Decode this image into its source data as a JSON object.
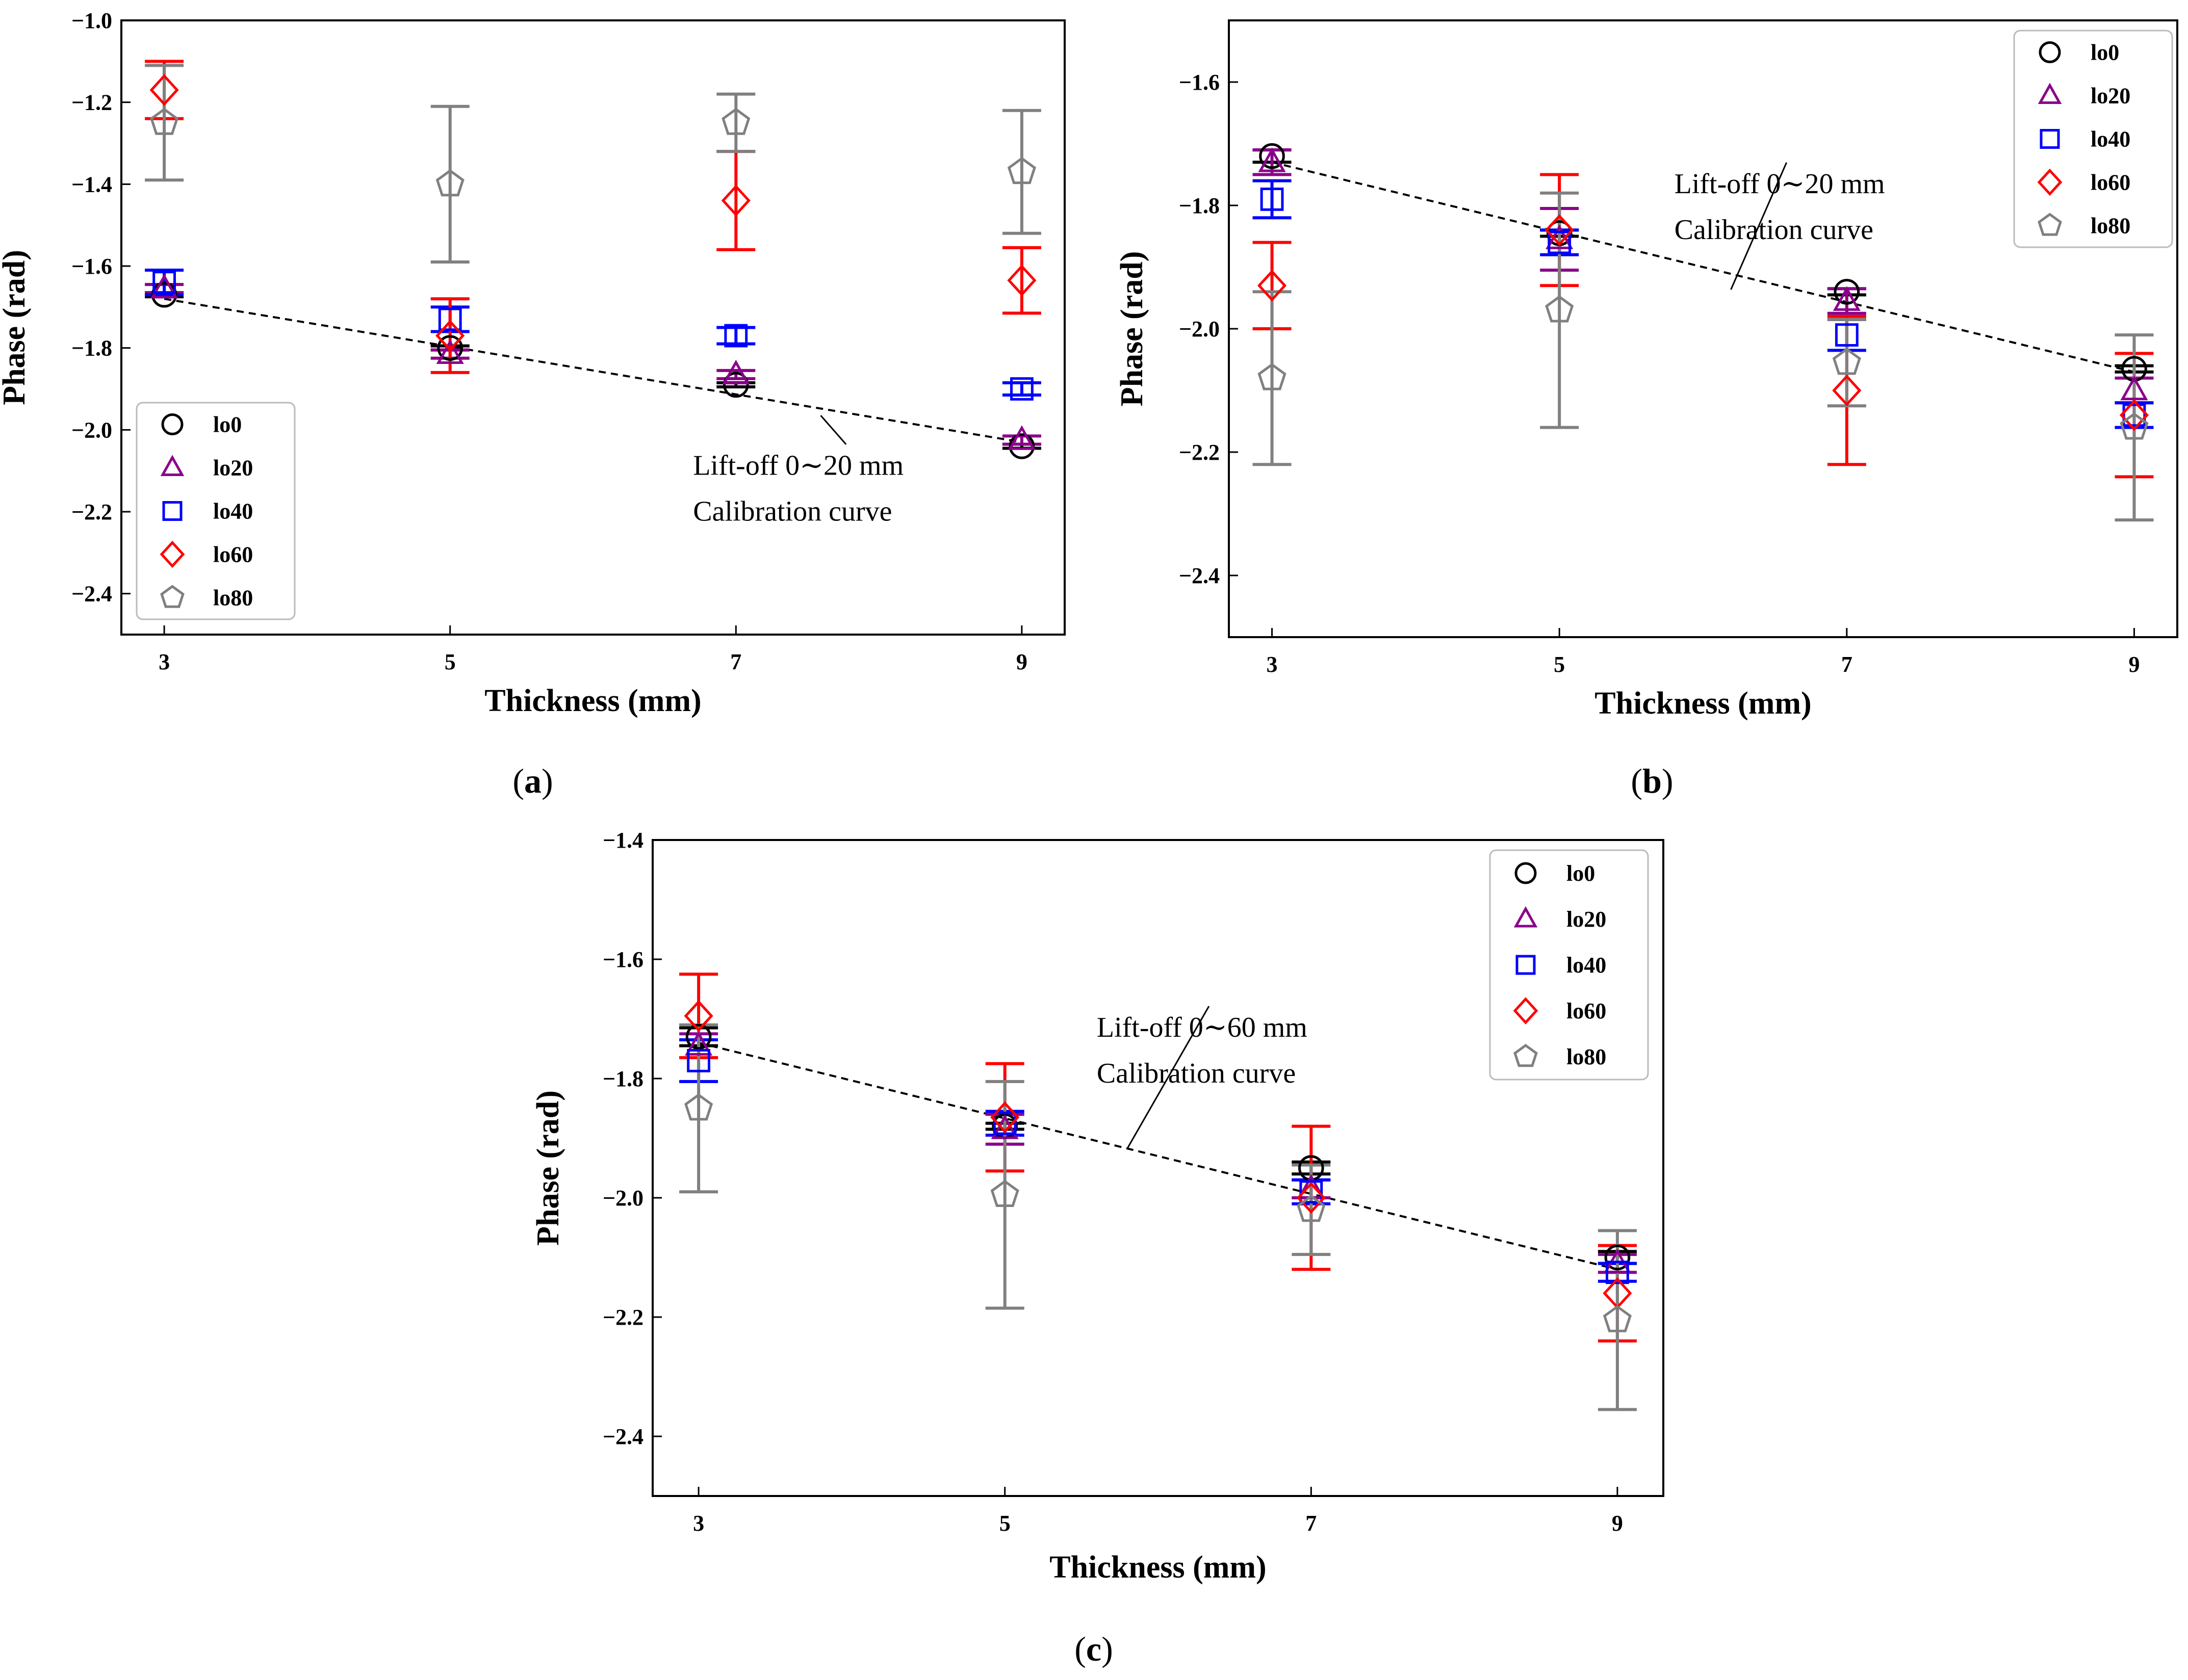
{
  "chart_data": [
    {
      "panel": "a",
      "type": "scatter",
      "xlabel": "Thickness (mm)",
      "ylabel": "Phase (rad)",
      "x": [
        3,
        5,
        7,
        9
      ],
      "xticks": [
        "3",
        "5",
        "7",
        "9"
      ],
      "xlim": [
        2.7,
        9.3
      ],
      "ylim": [
        -2.5,
        -1.0
      ],
      "yticks": [
        -1.0,
        -1.2,
        -1.4,
        -1.6,
        -1.8,
        -2.0,
        -2.2,
        -2.4
      ],
      "ytick_labels": [
        "−1.0",
        "−1.2",
        "−1.4",
        "−1.6",
        "−1.8",
        "−2.0",
        "−2.2",
        "−2.4"
      ],
      "legend_placement": "lower-left",
      "annotation": {
        "lines": [
          "Lift-off 0∼20 mm",
          "Calibration curve"
        ],
        "text_at": [
          6.7,
          -2.11
        ],
        "arrow_to": [
          7.7,
          -1.94
        ]
      },
      "calibration_line": {
        "x": [
          3,
          9
        ],
        "y": [
          -1.68,
          -2.03
        ]
      },
      "series": [
        {
          "name": "lo0",
          "marker": "circle",
          "color": "#000000",
          "values": [
            -1.67,
            -1.8,
            -1.89,
            -2.04
          ],
          "err": [
            0.005,
            0.005,
            0.005,
            0.005
          ]
        },
        {
          "name": "lo20",
          "marker": "triangle",
          "color": "#8b008b",
          "values": [
            -1.655,
            -1.815,
            -1.865,
            -2.025
          ],
          "err": [
            0.01,
            0.01,
            0.01,
            0.01
          ]
        },
        {
          "name": "lo40",
          "marker": "square",
          "color": "#0000ff",
          "values": [
            -1.64,
            -1.73,
            -1.77,
            -1.9
          ],
          "err": [
            0.03,
            0.03,
            0.02,
            0.015
          ]
        },
        {
          "name": "lo60",
          "marker": "diamond",
          "color": "#ff0000",
          "values": [
            -1.17,
            -1.77,
            -1.44,
            -1.635
          ],
          "err": [
            0.07,
            0.09,
            0.12,
            0.08
          ]
        },
        {
          "name": "lo80",
          "marker": "pentagon",
          "color": "#808080",
          "values": [
            -1.25,
            -1.4,
            -1.25,
            -1.37
          ],
          "err": [
            0.14,
            0.19,
            0.07,
            0.15
          ]
        }
      ]
    },
    {
      "panel": "b",
      "type": "scatter",
      "xlabel": "Thickness (mm)",
      "ylabel": "Phase (rad)",
      "x": [
        3,
        5,
        7,
        9
      ],
      "xticks": [
        "3",
        "5",
        "7",
        "9"
      ],
      "xlim": [
        2.7,
        9.3
      ],
      "ylim": [
        -2.5,
        -1.5
      ],
      "yticks": [
        -1.6,
        -1.8,
        -2.0,
        -2.2,
        -2.4
      ],
      "ytick_labels": [
        "−1.6",
        "−1.8",
        "−2.0",
        "−2.2",
        "−2.4"
      ],
      "legend_placement": "upper-right",
      "annotation": {
        "lines": [
          "Lift-off 0∼20 mm",
          "Calibration curve"
        ],
        "text_at": [
          5.8,
          -1.78
        ],
        "arrow_to": [
          6.3,
          -1.92
        ]
      },
      "calibration_line": {
        "x": [
          3,
          9
        ],
        "y": [
          -1.73,
          -2.07
        ]
      },
      "series": [
        {
          "name": "lo0",
          "marker": "circle",
          "color": "#000000",
          "values": [
            -1.72,
            -1.845,
            -1.94,
            -2.065
          ],
          "err": [
            0.01,
            0.005,
            0.005,
            0.005
          ]
        },
        {
          "name": "lo20",
          "marker": "triangle",
          "color": "#8b008b",
          "values": [
            -1.73,
            -1.855,
            -1.955,
            -2.1
          ],
          "err": [
            0.02,
            0.05,
            0.02,
            0.02
          ]
        },
        {
          "name": "lo40",
          "marker": "square",
          "color": "#0000ff",
          "values": [
            -1.79,
            -1.86,
            -2.01,
            -2.14
          ],
          "err": [
            0.03,
            0.02,
            0.025,
            0.02
          ]
        },
        {
          "name": "lo60",
          "marker": "diamond",
          "color": "#ff0000",
          "values": [
            -1.93,
            -1.84,
            -2.1,
            -2.14
          ],
          "err": [
            0.07,
            0.09,
            0.12,
            0.1
          ]
        },
        {
          "name": "lo80",
          "marker": "pentagon",
          "color": "#808080",
          "values": [
            -2.08,
            -1.97,
            -2.055,
            -2.16
          ],
          "err": [
            0.14,
            0.19,
            0.07,
            0.15
          ]
        }
      ]
    },
    {
      "panel": "c",
      "type": "scatter",
      "xlabel": "Thickness (mm)",
      "ylabel": "Phase (rad)",
      "x": [
        3,
        5,
        7,
        9
      ],
      "xticks": [
        "3",
        "5",
        "7",
        "9"
      ],
      "xlim": [
        2.7,
        9.3
      ],
      "ylim": [
        -2.5,
        -1.4
      ],
      "yticks": [
        -1.4,
        -1.6,
        -1.8,
        -2.0,
        -2.2,
        -2.4
      ],
      "ytick_labels": [
        "−1.4",
        "−1.6",
        "−1.8",
        "−2.0",
        "−2.2",
        "−2.4"
      ],
      "legend_placement": "upper-right",
      "annotation": {
        "lines": [
          "Lift-off 0∼60 mm",
          "Calibration curve"
        ],
        "text_at": [
          5.6,
          -1.73
        ],
        "arrow_to": [
          5.9,
          -1.9
        ]
      },
      "calibration_line": {
        "x": [
          3,
          9
        ],
        "y": [
          -1.74,
          -2.12
        ]
      },
      "series": [
        {
          "name": "lo0",
          "marker": "circle",
          "color": "#000000",
          "values": [
            -1.73,
            -1.88,
            -1.95,
            -2.1
          ],
          "err": [
            0.015,
            0.005,
            0.01,
            0.01
          ]
        },
        {
          "name": "lo20",
          "marker": "triangle",
          "color": "#8b008b",
          "values": [
            -1.745,
            -1.885,
            -1.985,
            -2.11
          ],
          "err": [
            0.02,
            0.025,
            0.015,
            0.015
          ]
        },
        {
          "name": "lo40",
          "marker": "square",
          "color": "#0000ff",
          "values": [
            -1.77,
            -1.875,
            -1.99,
            -2.125
          ],
          "err": [
            0.035,
            0.02,
            0.02,
            0.015
          ]
        },
        {
          "name": "lo60",
          "marker": "diamond",
          "color": "#ff0000",
          "values": [
            -1.695,
            -1.865,
            -2.0,
            -2.16
          ],
          "err": [
            0.07,
            0.09,
            0.12,
            0.08
          ]
        },
        {
          "name": "lo80",
          "marker": "pentagon",
          "color": "#808080",
          "values": [
            -1.85,
            -1.995,
            -2.02,
            -2.205
          ],
          "err": [
            0.14,
            0.19,
            0.075,
            0.15
          ]
        }
      ]
    }
  ],
  "captions": [
    {
      "open": "(",
      "letter": "a",
      "close": ")"
    },
    {
      "open": "(",
      "letter": "b",
      "close": ")"
    },
    {
      "open": "(",
      "letter": "c",
      "close": ")"
    }
  ]
}
